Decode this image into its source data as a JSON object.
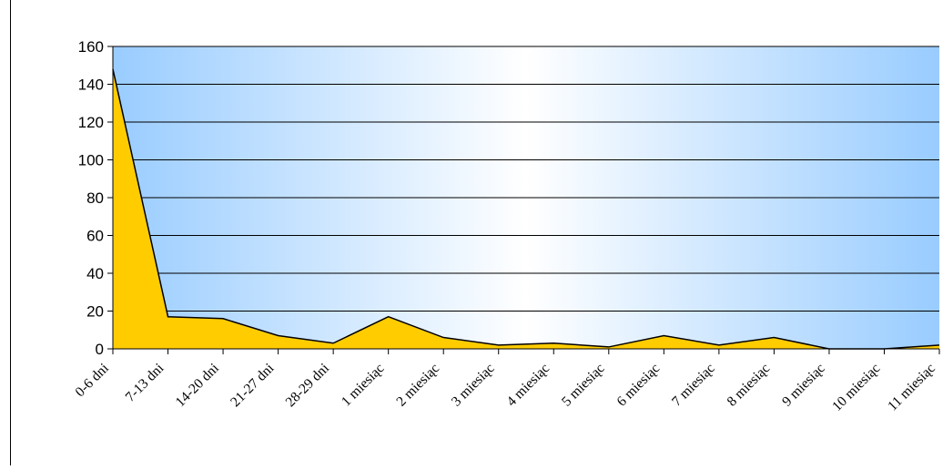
{
  "chart_data": {
    "type": "area",
    "title": "",
    "xlabel": "",
    "ylabel": "",
    "categories": [
      "0-6 dni",
      "7-13 dni",
      "14-20 dni",
      "21-27 dni",
      "28-29 dni",
      "1 miesiąc",
      "2 miesiąc",
      "3 miesiąc",
      "4 miesiąc",
      "5 miesiąc",
      "6 miesiąc",
      "7 miesiąc",
      "8 miesiąc",
      "9 miesiąc",
      "10 miesiąc",
      "11 miesiąc"
    ],
    "values": [
      148,
      17,
      16,
      7,
      3,
      17,
      6,
      2,
      3,
      1,
      7,
      2,
      6,
      0,
      0,
      2
    ],
    "ylim": [
      0,
      160
    ],
    "yticks": [
      0,
      20,
      40,
      60,
      80,
      100,
      120,
      140,
      160
    ],
    "grid": true,
    "legend": "none",
    "colors": {
      "area_fill": "#FFCC00",
      "area_stroke": "#000000",
      "bg_edge": "#99CCFF",
      "bg_center": "#FFFFFF",
      "gridline": "#000000"
    }
  }
}
